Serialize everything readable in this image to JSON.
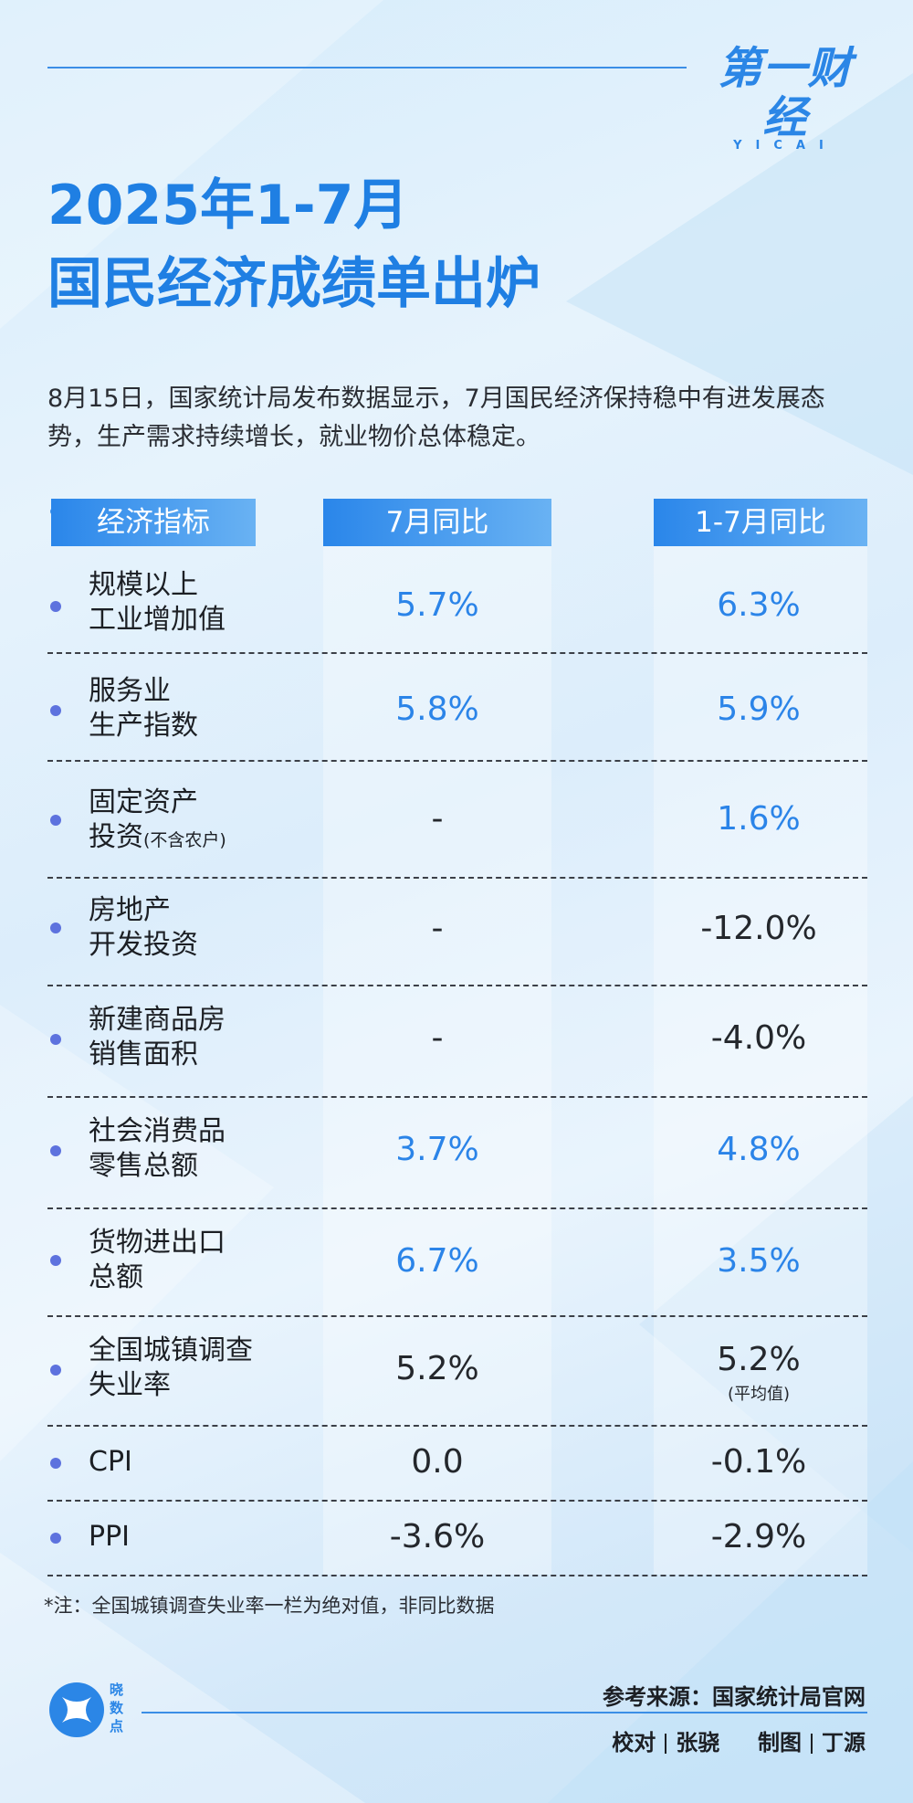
{
  "brand": {
    "logo_main": "第一财经",
    "logo_sub": "YICAI"
  },
  "title": {
    "line1": "2025年1-7月",
    "line2": "国民经济成绩单出炉"
  },
  "intro": "8月15日，国家统计局发布数据显示，7月国民经济保持稳中有进发展态势，生产需求持续增长，就业物价总体稳定。",
  "table": {
    "headers": {
      "indicator": "经济指标",
      "july": "7月同比",
      "ytd": "1-7月同比"
    },
    "rows": [
      {
        "name1": "规模以上",
        "name2": "工业增加值",
        "name2_sub": "",
        "july": "5.7%",
        "ytd": "6.3%",
        "ytd_note": ""
      },
      {
        "name1": "服务业",
        "name2": "生产指数",
        "name2_sub": "",
        "july": "5.8%",
        "ytd": "5.9%",
        "ytd_note": ""
      },
      {
        "name1": "固定资产",
        "name2": "投资",
        "name2_sub": "(不含农户)",
        "july": "-",
        "ytd": "1.6%",
        "ytd_note": ""
      },
      {
        "name1": "房地产",
        "name2": "开发投资",
        "name2_sub": "",
        "july": "-",
        "ytd": "-12.0%",
        "ytd_note": ""
      },
      {
        "name1": "新建商品房",
        "name2": "销售面积",
        "name2_sub": "",
        "july": "-",
        "ytd": "-4.0%",
        "ytd_note": ""
      },
      {
        "name1": "社会消费品",
        "name2": "零售总额",
        "name2_sub": "",
        "july": "3.7%",
        "ytd": "4.8%",
        "ytd_note": ""
      },
      {
        "name1": "货物进出口",
        "name2": "总额",
        "name2_sub": "",
        "july": "6.7%",
        "ytd": "3.5%",
        "ytd_note": ""
      },
      {
        "name1": "全国城镇调查",
        "name2": "失业率",
        "name2_sub": "",
        "july": "5.2%",
        "ytd": "5.2%",
        "ytd_note": "(平均值)"
      },
      {
        "name1": "CPI",
        "name2": "",
        "name2_sub": "",
        "july": "0.0",
        "ytd": "-0.1%",
        "ytd_note": ""
      },
      {
        "name1": "PPI",
        "name2": "",
        "name2_sub": "",
        "july": "-3.6%",
        "ytd": "-2.9%",
        "ytd_note": ""
      }
    ]
  },
  "note": "*注：全国城镇调查失业率一栏为绝对值，非同比数据",
  "footer": {
    "brand_text": "晓数点",
    "source": "参考来源：国家统计局官网",
    "proof_label": "校对",
    "proof_name": "张骁",
    "design_label": "制图",
    "design_name": "丁源"
  },
  "colors": {
    "accent": "#2b84e8",
    "bullet": "#5d72de",
    "header_start": "#2a86ea",
    "header_end": "#69b2f3"
  }
}
